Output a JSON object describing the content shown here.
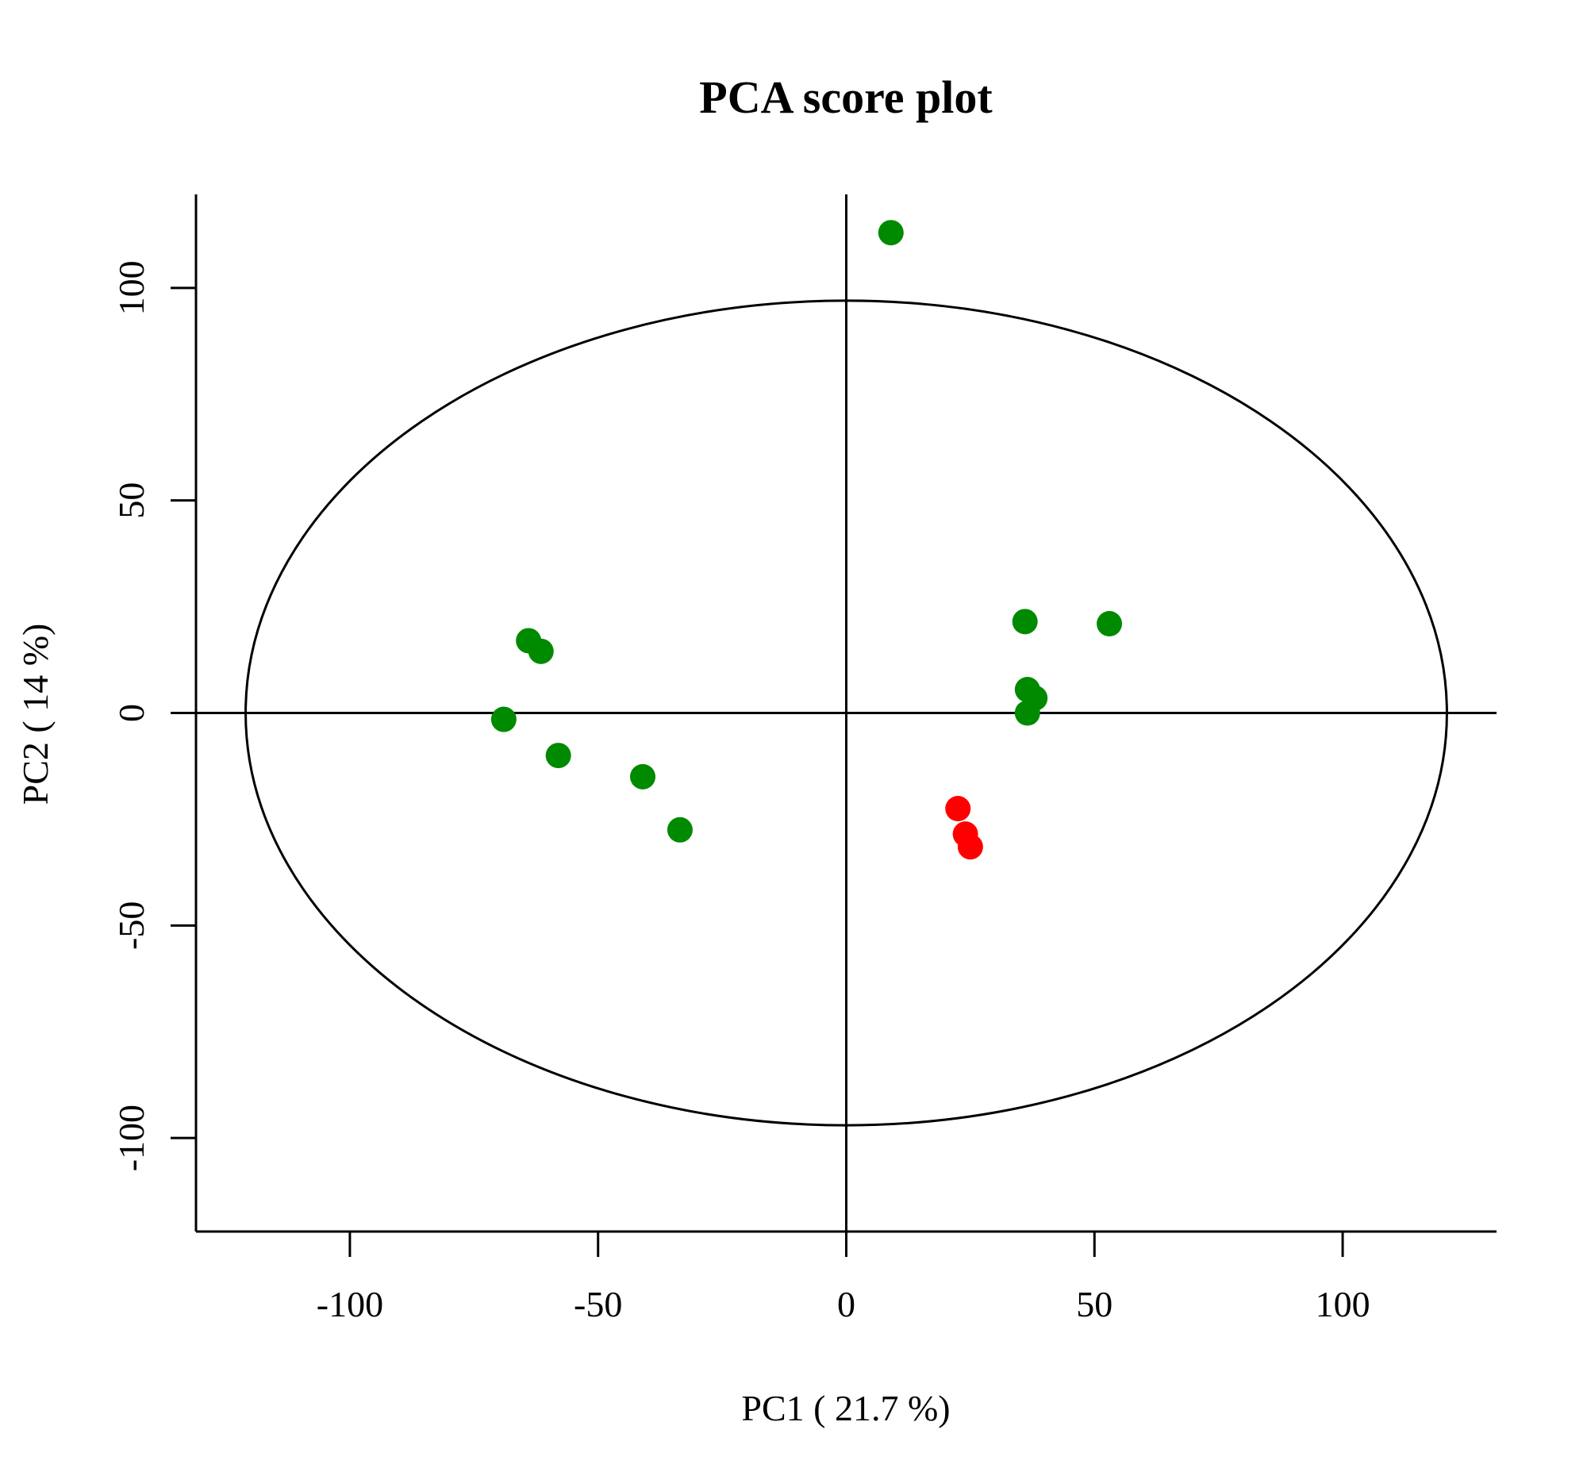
{
  "chart_data": {
    "type": "scatter",
    "title": "PCA score plot",
    "xlabel": "PC1 ( 21.7 %)",
    "ylabel": "PC2 ( 14 %)",
    "xlim": [
      -131,
      131
    ],
    "ylim": [
      -122,
      122
    ],
    "x_ticks": [
      -100,
      -50,
      0,
      50,
      100
    ],
    "y_ticks": [
      -100,
      -50,
      0,
      50,
      100
    ],
    "x_tick_labels": [
      "-100",
      "-50",
      "0",
      "50",
      "100"
    ],
    "y_tick_labels": [
      "-100",
      "-50",
      "0",
      "50",
      "100"
    ],
    "reference_lines": {
      "x": 0,
      "y": 0
    },
    "ellipse": {
      "cx": 0,
      "cy": 0,
      "rx": 121,
      "ry": 97
    },
    "grid": false,
    "series": [
      {
        "color": "#008a00",
        "points": [
          {
            "x": 9,
            "y": 113
          },
          {
            "x": -64,
            "y": 17
          },
          {
            "x": -61.5,
            "y": 14.5
          },
          {
            "x": -69,
            "y": -1.5
          },
          {
            "x": -58,
            "y": -10
          },
          {
            "x": -41,
            "y": -15
          },
          {
            "x": -33.5,
            "y": -27.5
          },
          {
            "x": 36,
            "y": 21.5
          },
          {
            "x": 53,
            "y": 21
          },
          {
            "x": 36.5,
            "y": 5.5
          },
          {
            "x": 38,
            "y": 3.5
          },
          {
            "x": 36.5,
            "y": 0
          }
        ]
      },
      {
        "color": "#ff0000",
        "points": [
          {
            "x": 22.5,
            "y": -22.5
          },
          {
            "x": 24,
            "y": -28.5
          },
          {
            "x": 25,
            "y": -31.5
          }
        ]
      }
    ]
  }
}
